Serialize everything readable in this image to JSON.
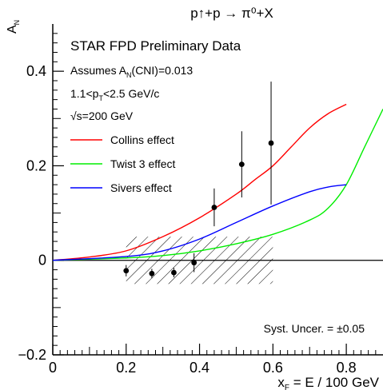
{
  "chart_data": {
    "type": "line",
    "title": "p↑+p → π⁰+X",
    "header": "STAR FPD Preliminary Data",
    "xlabel": "x_F = E / 100 GeV",
    "ylabel": "A_N",
    "xlim": [
      0,
      0.9
    ],
    "ylim": [
      -0.2,
      0.5
    ],
    "x_ticks": [
      0,
      0.2,
      0.4,
      0.6,
      0.8
    ],
    "x_tick_labels": [
      "0",
      "0.2",
      "0.4",
      "0.6",
      "0.8"
    ],
    "y_ticks": [
      -0.2,
      0,
      0.2,
      0.4
    ],
    "y_tick_labels": [
      "−0.2",
      "0",
      "0.2",
      "0.4"
    ],
    "annotations": {
      "cni": "Assumes A_N(CNI)=0.013",
      "pt_range": "1.1<p_T<2.5 GeV/c",
      "energy": "√s=200 GeV",
      "syst": "Syst. Uncer. = ±0.05"
    },
    "systematic_band": {
      "x_min": 0.2,
      "x_max": 0.6,
      "y_min": -0.05,
      "y_max": 0.05
    },
    "series": [
      {
        "name": "Collins effect",
        "color": "#ff0000",
        "x": [
          0,
          0.1,
          0.2,
          0.3,
          0.4,
          0.5,
          0.55,
          0.6,
          0.65,
          0.7,
          0.75,
          0.8
        ],
        "y": [
          0,
          0.007,
          0.02,
          0.05,
          0.09,
          0.14,
          0.17,
          0.2,
          0.24,
          0.28,
          0.31,
          0.33
        ]
      },
      {
        "name": "Twist 3 effect",
        "color": "#00ee00",
        "x": [
          0,
          0.2,
          0.3,
          0.4,
          0.5,
          0.6,
          0.7,
          0.75,
          0.8,
          0.85,
          0.9
        ],
        "y": [
          0,
          0.005,
          0.01,
          0.02,
          0.035,
          0.055,
          0.085,
          0.11,
          0.16,
          0.24,
          0.32
        ]
      },
      {
        "name": "Sivers effect",
        "color": "#0000ff",
        "x": [
          0,
          0.2,
          0.3,
          0.4,
          0.5,
          0.6,
          0.7,
          0.75,
          0.8
        ],
        "y": [
          0,
          0.008,
          0.02,
          0.045,
          0.08,
          0.115,
          0.145,
          0.155,
          0.16
        ]
      }
    ],
    "data_points": [
      {
        "x": 0.2,
        "y": -0.022,
        "err": 0.012
      },
      {
        "x": 0.27,
        "y": -0.028,
        "err": 0.01
      },
      {
        "x": 0.33,
        "y": -0.026,
        "err": 0.01
      },
      {
        "x": 0.385,
        "y": -0.005,
        "err": 0.02
      },
      {
        "x": 0.44,
        "y": 0.112,
        "err": 0.04
      },
      {
        "x": 0.515,
        "y": 0.203,
        "err": 0.07
      },
      {
        "x": 0.595,
        "y": 0.248,
        "err": 0.13
      }
    ]
  }
}
